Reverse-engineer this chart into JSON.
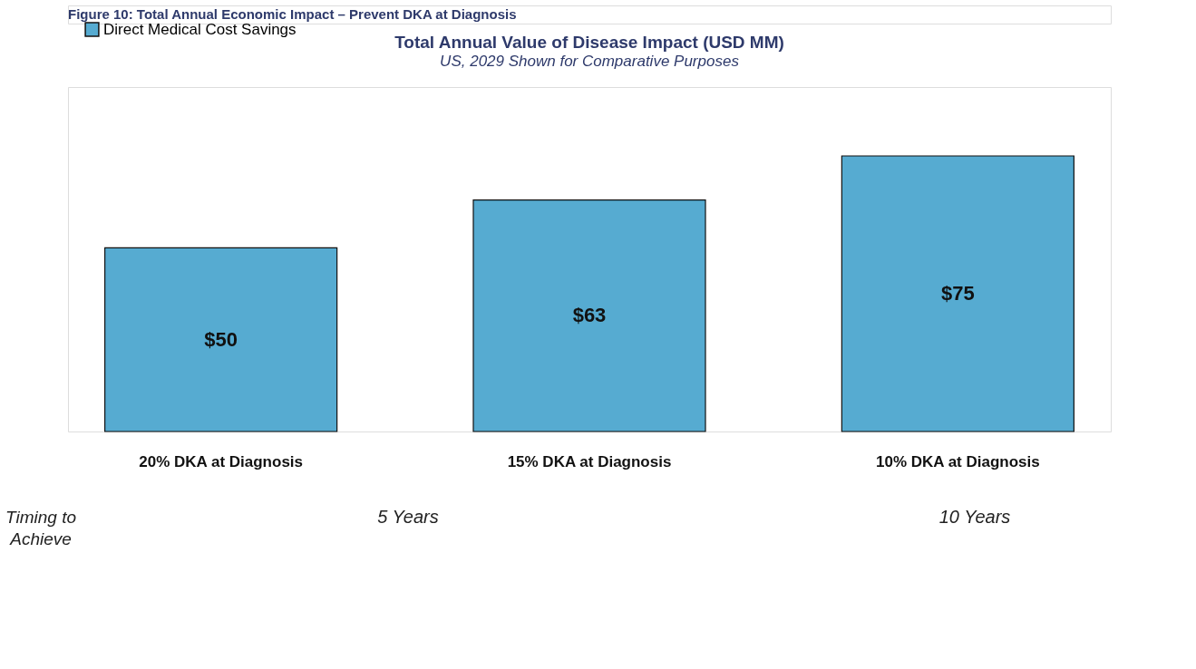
{
  "chart_data": {
    "type": "bar",
    "title": "Total Annual Value of Disease Impact (USD MM)",
    "subtitle": "US, 2029 Shown for Comparative Purposes",
    "categories": [
      "20% DKA at Diagnosis",
      "15% DKA at Diagnosis",
      "10% DKA at Diagnosis"
    ],
    "series": [
      {
        "name": "Direct Medical Cost Savings",
        "color": "#56abd1",
        "values": [
          50,
          63,
          75
        ],
        "value_labels": [
          "$50",
          "$63",
          "$75"
        ]
      }
    ],
    "legend": "top left",
    "annotations": [
      "Figure 10: Total Annual Economic Impact – Prevent DKA at Diagnosis",
      "Timing to Achieve",
      "5 Years",
      "10 Years"
    ]
  }
}
